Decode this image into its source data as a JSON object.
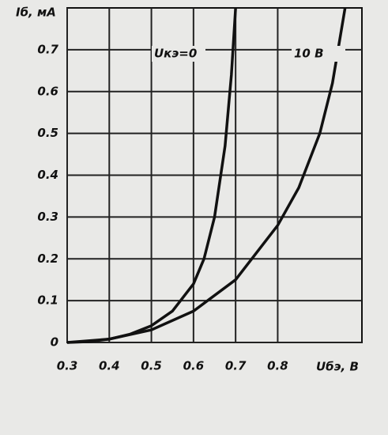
{
  "chart_data": {
    "type": "line",
    "y_label": "Iб, мА",
    "x_label": "Uбэ, В",
    "xlim": [
      0.3,
      1.0
    ],
    "ylim": [
      0,
      0.8
    ],
    "xticks": [
      0.3,
      0.4,
      0.5,
      0.6,
      0.7,
      0.8
    ],
    "yticks": [
      0,
      0.1,
      0.2,
      0.3,
      0.4,
      0.5,
      0.6,
      0.7
    ],
    "grid": true,
    "series": [
      {
        "name": "Uкэ=0",
        "color": "#111111",
        "x": [
          0.3,
          0.35,
          0.4,
          0.45,
          0.5,
          0.55,
          0.6,
          0.625,
          0.65,
          0.675,
          0.69,
          0.7
        ],
        "values": [
          0,
          0.002,
          0.008,
          0.02,
          0.04,
          0.075,
          0.14,
          0.2,
          0.3,
          0.47,
          0.64,
          0.8
        ]
      },
      {
        "name": "10 В",
        "color": "#111111",
        "x": [
          0.3,
          0.4,
          0.5,
          0.6,
          0.7,
          0.8,
          0.85,
          0.9,
          0.93,
          0.96
        ],
        "values": [
          0,
          0.008,
          0.03,
          0.075,
          0.15,
          0.28,
          0.37,
          0.5,
          0.62,
          0.8
        ]
      }
    ]
  }
}
